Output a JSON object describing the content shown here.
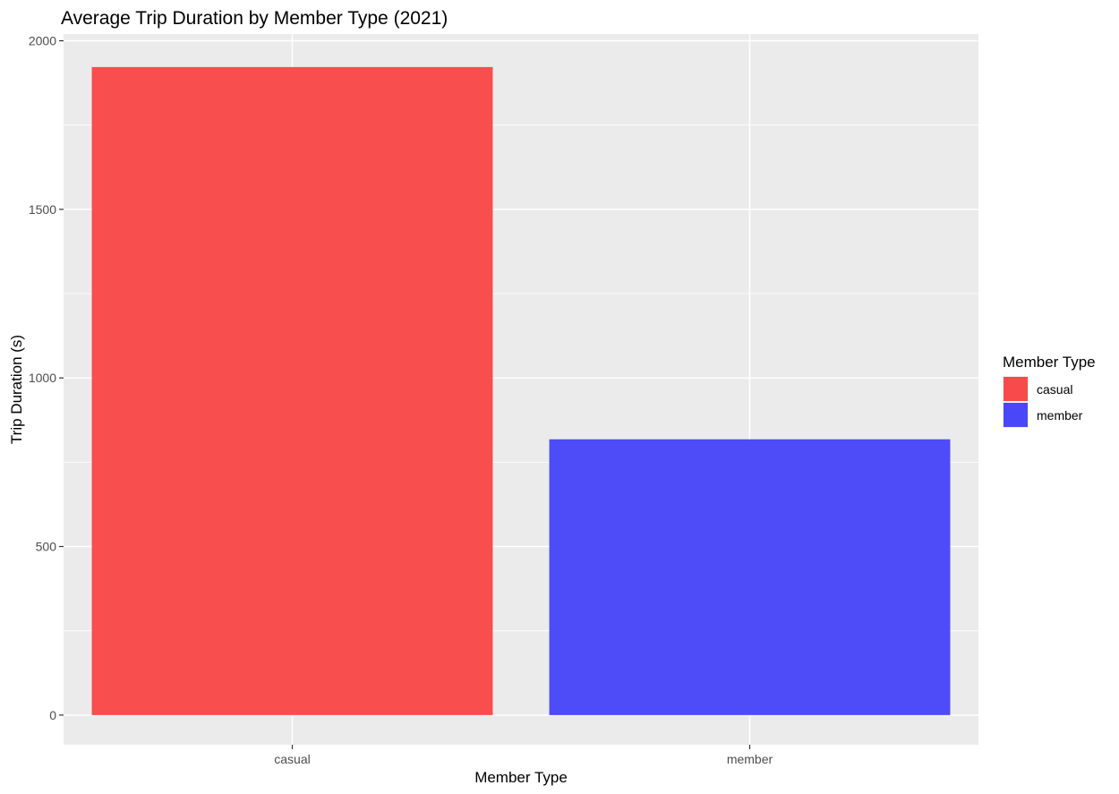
{
  "chart_data": {
    "type": "bar",
    "title": "Average Trip Duration by Member Type (2021)",
    "xlabel": "Member Type",
    "ylabel": "Trip Duration (s)",
    "categories": [
      "casual",
      "member"
    ],
    "values": [
      1922,
      818
    ],
    "colors": [
      "#F84A4A",
      "#4A47F8"
    ],
    "ylim": [
      -88,
      2020
    ],
    "yticks": [
      0,
      500,
      1000,
      1500,
      2000
    ],
    "grid": true,
    "legend": {
      "title": "Member Type",
      "placement": "right",
      "entries": [
        {
          "label": "casual",
          "color": "#F84A4A"
        },
        {
          "label": "member",
          "color": "#4A47F8"
        }
      ]
    }
  }
}
